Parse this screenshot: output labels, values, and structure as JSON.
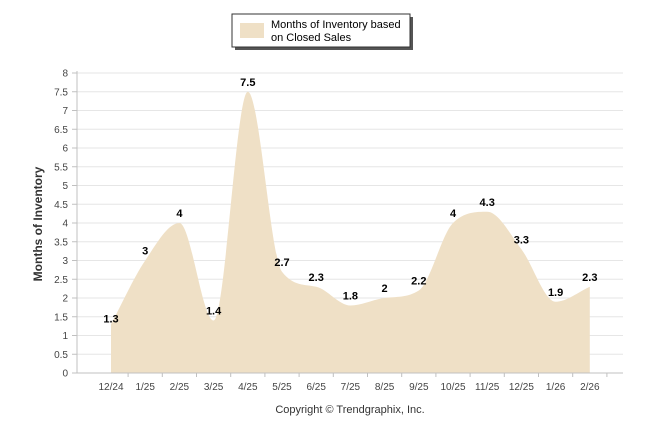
{
  "chart_data": {
    "type": "area",
    "categories": [
      "12/24",
      "1/25",
      "2/25",
      "3/25",
      "4/25",
      "5/25",
      "6/25",
      "7/25",
      "8/25",
      "9/25",
      "10/25",
      "11/25",
      "12/25",
      "1/26",
      "2/26"
    ],
    "series": [
      {
        "name": "Months of Inventory based on Closed Sales",
        "values": [
          1.3,
          3,
          4,
          1.4,
          7.5,
          2.7,
          2.3,
          1.8,
          2,
          2.2,
          4,
          4.3,
          3.3,
          1.9,
          2.3
        ],
        "value_labels": [
          "1.3",
          "3",
          "4",
          "1.4",
          "7.5",
          "2.7",
          "2.3",
          "1.8",
          "2",
          "2.2",
          "4",
          "4.3",
          "3.3",
          "1.9",
          "2.3"
        ],
        "color": "#efe0c6"
      }
    ],
    "legend_lines": [
      "Months of Inventory based",
      "on Closed Sales"
    ],
    "legend_position": "top-center",
    "ylabel": "Months of Inventory",
    "xlabel": "",
    "ylim": [
      0,
      8
    ],
    "yticks": [
      "0",
      "0.5",
      "1",
      "1.5",
      "2",
      "2.5",
      "3",
      "3.5",
      "4",
      "4.5",
      "5",
      "5.5",
      "6",
      "6.5",
      "7",
      "7.5",
      "8"
    ],
    "grid": true,
    "credit": "Copyright © Trendgraphix, Inc."
  }
}
